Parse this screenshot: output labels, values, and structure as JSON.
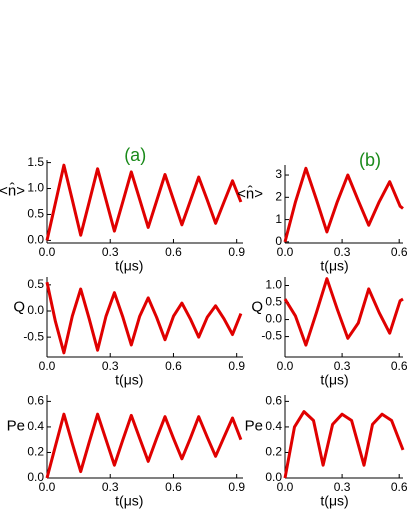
{
  "chart_data": [
    {
      "type": "line",
      "title": "(a)",
      "ylabel": "<n̂>",
      "xlabel": "t(μs)",
      "color": "#e00000",
      "x": [
        0,
        0.04,
        0.08,
        0.12,
        0.16,
        0.2,
        0.24,
        0.28,
        0.32,
        0.36,
        0.4,
        0.44,
        0.48,
        0.52,
        0.56,
        0.6,
        0.64,
        0.68,
        0.72,
        0.76,
        0.8,
        0.84,
        0.88,
        0.92
      ],
      "values": [
        0,
        0.72,
        1.45,
        0.78,
        0.1,
        0.74,
        1.38,
        0.78,
        0.18,
        0.75,
        1.32,
        0.79,
        0.25,
        0.76,
        1.27,
        0.78,
        0.3,
        0.76,
        1.22,
        0.78,
        0.33,
        0.74,
        1.15,
        0.74
      ],
      "xlim": [
        0,
        0.93
      ],
      "ylim": [
        -0.05,
        1.55
      ],
      "xticks": [
        {
          "value": 0,
          "label": "0.0"
        },
        0.3,
        0.6,
        0.9
      ],
      "yticks": [
        {
          "value": 0,
          "label": "0.0"
        },
        0.5,
        {
          "value": 1,
          "label": "1.0"
        },
        1.5
      ]
    },
    {
      "type": "line",
      "title": "(b)",
      "ylabel": "<n̂>",
      "xlabel": "t(μs)",
      "color": "#e00000",
      "x": [
        0,
        0.055,
        0.11,
        0.165,
        0.22,
        0.275,
        0.33,
        0.385,
        0.44,
        0.495,
        0.55,
        0.605,
        0.62
      ],
      "values": [
        0,
        1.8,
        3.3,
        1.9,
        0.45,
        1.8,
        3.0,
        1.85,
        0.75,
        1.8,
        2.7,
        1.6,
        1.5
      ],
      "xlim": [
        0,
        0.62
      ],
      "ylim": [
        -0.05,
        3.45
      ],
      "xticks": [
        {
          "value": 0,
          "label": "0.0"
        },
        0.3,
        0.6
      ],
      "yticks": [
        0,
        1,
        2,
        3
      ]
    },
    {
      "type": "line",
      "ylabel": "Q",
      "xlabel": "t(μs)",
      "color": "#e00000",
      "x": [
        0,
        0.04,
        0.08,
        0.12,
        0.16,
        0.2,
        0.24,
        0.28,
        0.32,
        0.36,
        0.4,
        0.44,
        0.48,
        0.52,
        0.56,
        0.6,
        0.64,
        0.68,
        0.72,
        0.76,
        0.8,
        0.84,
        0.88,
        0.92
      ],
      "values": [
        0.55,
        -0.2,
        -0.8,
        -0.1,
        0.42,
        -0.15,
        -0.75,
        -0.1,
        0.35,
        -0.12,
        -0.65,
        -0.1,
        0.25,
        -0.12,
        -0.55,
        -0.1,
        0.15,
        -0.15,
        -0.5,
        -0.12,
        0.1,
        -0.15,
        -0.45,
        -0.05
      ],
      "xlim": [
        0,
        0.93
      ],
      "ylim": [
        -0.88,
        0.65
      ],
      "xticks": [
        {
          "value": 0,
          "label": "0.0"
        },
        0.3,
        0.6,
        0.9
      ],
      "yticks": [
        -0.5,
        {
          "value": 0,
          "label": "0.0"
        },
        0.5
      ]
    },
    {
      "type": "line",
      "ylabel": "Q",
      "xlabel": "t(μs)",
      "color": "#e00000",
      "x": [
        0,
        0.055,
        0.11,
        0.165,
        0.22,
        0.275,
        0.33,
        0.385,
        0.44,
        0.495,
        0.55,
        0.605,
        0.62
      ],
      "values": [
        0.6,
        0.1,
        -0.75,
        0.2,
        1.2,
        0.3,
        -0.55,
        -0.1,
        0.9,
        0.2,
        -0.4,
        0.55,
        0.6
      ],
      "xlim": [
        0,
        0.62
      ],
      "ylim": [
        -1.1,
        1.25
      ],
      "xticks": [
        {
          "value": 0,
          "label": "0.0"
        },
        0.3,
        0.6
      ],
      "yticks": [
        -0.5,
        {
          "value": 0,
          "label": "0.0"
        },
        0.5,
        {
          "value": 1,
          "label": "1.0"
        }
      ]
    },
    {
      "type": "line",
      "ylabel": "Pe",
      "xlabel": "t(μs)",
      "color": "#e00000",
      "x": [
        0,
        0.04,
        0.08,
        0.12,
        0.16,
        0.2,
        0.24,
        0.28,
        0.32,
        0.36,
        0.4,
        0.44,
        0.48,
        0.52,
        0.56,
        0.6,
        0.64,
        0.68,
        0.72,
        0.76,
        0.8,
        0.84,
        0.88,
        0.92
      ],
      "values": [
        0,
        0.25,
        0.5,
        0.27,
        0.05,
        0.28,
        0.5,
        0.3,
        0.1,
        0.3,
        0.49,
        0.31,
        0.13,
        0.31,
        0.48,
        0.31,
        0.15,
        0.31,
        0.48,
        0.32,
        0.17,
        0.32,
        0.47,
        0.3
      ],
      "xlim": [
        0,
        0.93
      ],
      "ylim": [
        0,
        0.65
      ],
      "xticks": [
        {
          "value": 0,
          "label": "0.0"
        },
        0.3,
        0.6,
        0.9
      ],
      "yticks": [
        {
          "value": 0,
          "label": "0.0"
        },
        0.2,
        0.4,
        0.6
      ]
    },
    {
      "type": "line",
      "ylabel": "Pe",
      "xlabel": "t(μs)",
      "color": "#e00000",
      "x": [
        0,
        0.05,
        0.1,
        0.15,
        0.2,
        0.25,
        0.3,
        0.35,
        0.415,
        0.46,
        0.51,
        0.56,
        0.62
      ],
      "values": [
        0,
        0.4,
        0.52,
        0.45,
        0.1,
        0.42,
        0.5,
        0.45,
        0.1,
        0.42,
        0.5,
        0.45,
        0.22
      ],
      "xlim": [
        0,
        0.62
      ],
      "ylim": [
        0,
        0.65
      ],
      "xticks": [
        {
          "value": 0,
          "label": "0.0"
        },
        0.3,
        0.6
      ],
      "yticks": [
        {
          "value": 0,
          "label": "0.0"
        },
        0.2,
        0.4,
        0.6
      ]
    }
  ]
}
